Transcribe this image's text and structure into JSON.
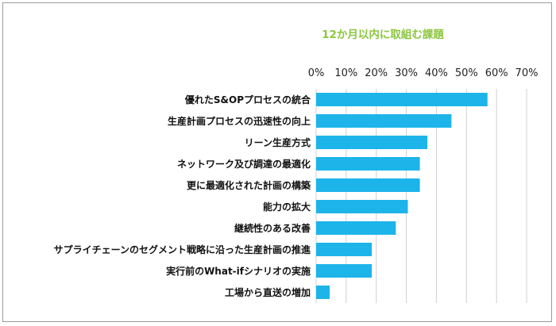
{
  "chart_data": {
    "type": "bar",
    "orientation": "horizontal",
    "title": "12か月以内に取組む課題",
    "categories": [
      "優れたS&OPプロセスの統合",
      "生産計画プロセスの迅速性の向上",
      "リーン生産方式",
      "ネットワーク及び調達の最適化",
      "更に最適化された計画の構築",
      "能力の拡大",
      "継続性のある改善",
      "サプライチェーンのセグメント戦略に沿った生産計画の推進",
      "実行前のWhat-ifシナリオの実施",
      "工場から直送の増加"
    ],
    "values": [
      57,
      45,
      37,
      34.5,
      34.5,
      30.5,
      26.5,
      18.5,
      18.5,
      4.5
    ],
    "xlim": [
      0,
      70
    ],
    "xticks": [
      "0%",
      "10%",
      "20%",
      "30%",
      "40%",
      "50%",
      "60%",
      "70%"
    ],
    "axis_position": "top",
    "grid": true,
    "colors": {
      "bar": "#1db4ea",
      "title": "#8cc63f",
      "grid": "#d0d0d0"
    }
  }
}
